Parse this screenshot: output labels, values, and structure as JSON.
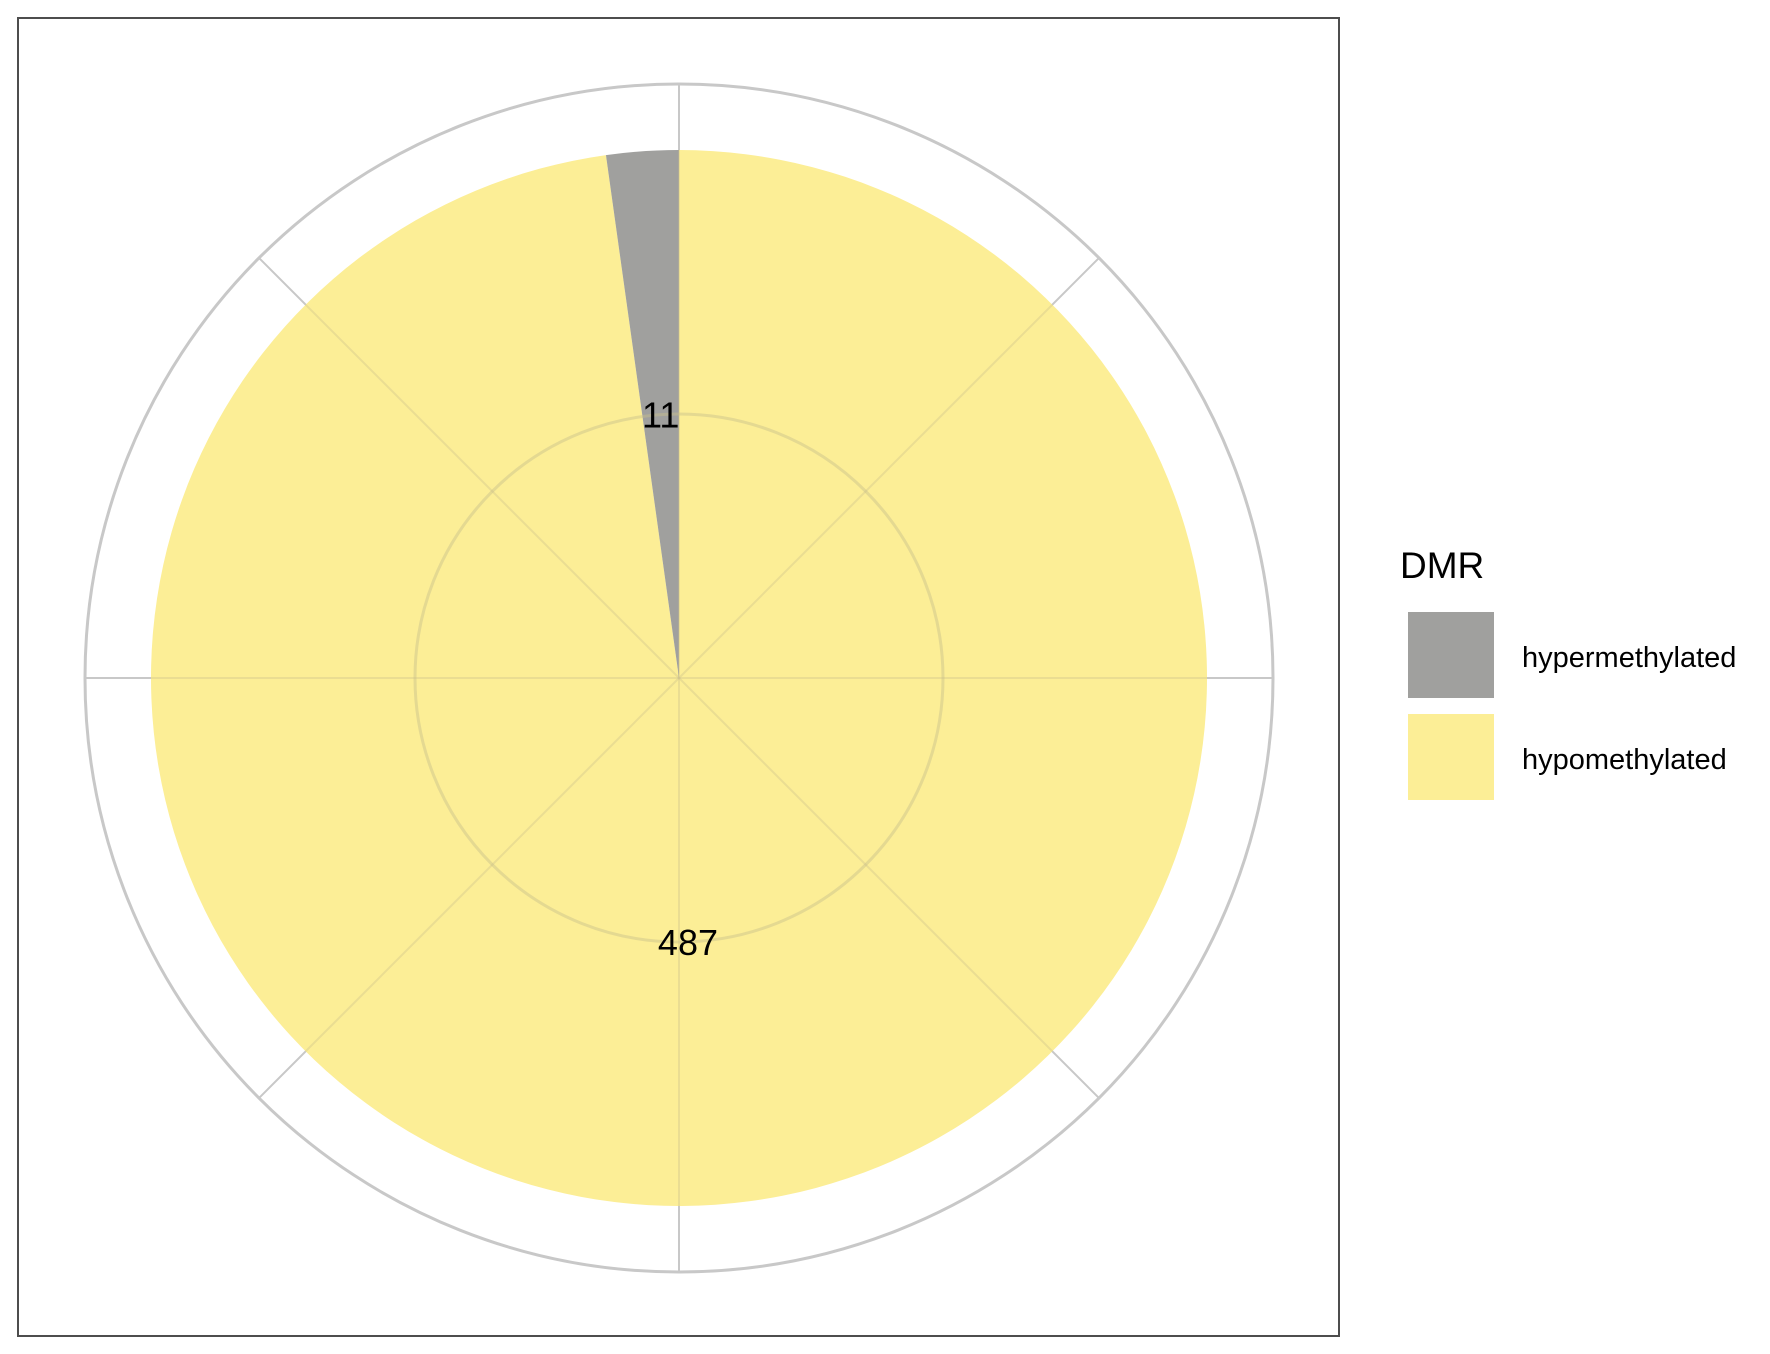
{
  "chart_data": {
    "type": "pie",
    "categories": [
      "hypermethylated",
      "hypomethylated"
    ],
    "values": [
      11,
      487
    ],
    "slice_labels": [
      "11",
      "487"
    ],
    "colors": {
      "hypermethylated": "#a0a09e",
      "hypomethylated": "#fcee96"
    },
    "legend": {
      "title": "DMR",
      "placement": "right",
      "entries": [
        "hypermethylated",
        "hypomethylated"
      ]
    },
    "grid": true,
    "title": "",
    "xlabel": "",
    "ylabel": ""
  }
}
